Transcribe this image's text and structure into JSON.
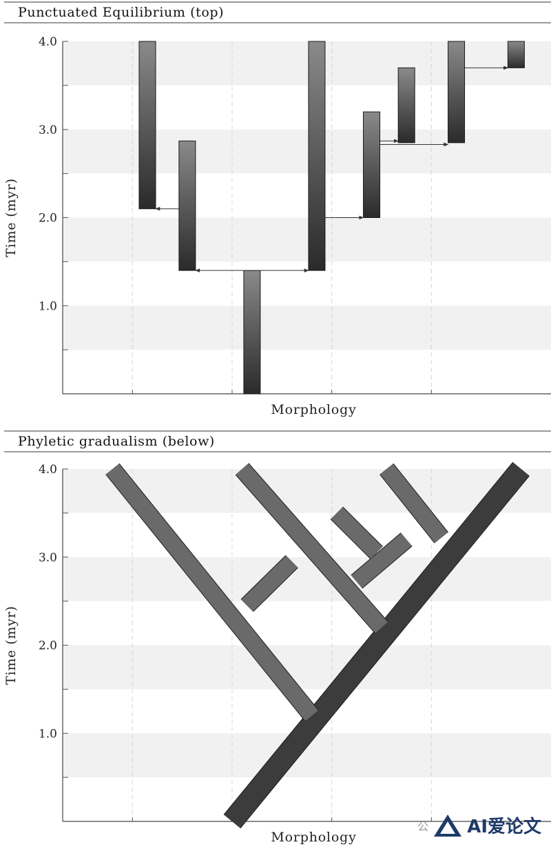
{
  "panels": [
    {
      "id": "top",
      "title": "Punctuated Equilibrium (top)",
      "type": "punctuated",
      "ylabel": "Time (myr)",
      "xlabel": "Morphology",
      "y_ticks": [
        "1.0",
        "2.0",
        "3.0",
        "4.0"
      ],
      "ylim": [
        0,
        4.0
      ],
      "lineages": [
        {
          "x": 1.15,
          "start": 2.1,
          "end": 4.0
        },
        {
          "x": 1.55,
          "start": 1.4,
          "end": 2.87
        },
        {
          "x": 2.2,
          "start": 0.0,
          "end": 1.4
        },
        {
          "x": 2.85,
          "start": 1.4,
          "end": 4.0
        },
        {
          "x": 3.4,
          "start": 2.0,
          "end": 3.2
        },
        {
          "x": 3.75,
          "start": 2.85,
          "end": 3.7
        },
        {
          "x": 4.25,
          "start": 2.85,
          "end": 4.0
        },
        {
          "x": 4.85,
          "start": 3.7,
          "end": 4.0
        }
      ],
      "events": [
        {
          "from_x": 1.55,
          "to_x": 1.15,
          "t": 2.1
        },
        {
          "from_x": 2.2,
          "to_x": 1.55,
          "t": 1.4
        },
        {
          "from_x": 2.2,
          "to_x": 2.85,
          "t": 1.4
        },
        {
          "from_x": 2.85,
          "to_x": 3.4,
          "t": 2.0
        },
        {
          "from_x": 3.4,
          "to_x": 3.75,
          "t": 2.87
        },
        {
          "from_x": 3.4,
          "to_x": 4.25,
          "t": 2.83
        },
        {
          "from_x": 4.25,
          "to_x": 4.85,
          "t": 3.7
        }
      ]
    },
    {
      "id": "bottom",
      "title": "Phyletic gradualism (below)",
      "type": "gradualism",
      "ylabel": "Time (myr)",
      "xlabel": "Morphology",
      "y_ticks": [
        "1.0",
        "2.0",
        "3.0",
        "4.0"
      ],
      "ylim": [
        0,
        4.0
      ],
      "branches": [
        {
          "x0": 2.0,
          "t0": 0.0,
          "x1": 4.9,
          "t1": 4.0
        },
        {
          "x0": 2.8,
          "t0": 1.2,
          "x1": 0.8,
          "t1": 4.0
        },
        {
          "x0": 2.15,
          "t0": 2.45,
          "x1": 2.6,
          "t1": 2.95
        },
        {
          "x0": 3.5,
          "t0": 2.2,
          "x1": 2.1,
          "t1": 4.0
        },
        {
          "x0": 3.25,
          "t0": 2.72,
          "x1": 3.75,
          "t1": 3.2
        },
        {
          "x0": 3.45,
          "t0": 3.05,
          "x1": 3.05,
          "t1": 3.5
        },
        {
          "x0": 4.1,
          "t0": 3.22,
          "x1": 3.55,
          "t1": 4.0
        }
      ]
    }
  ],
  "watermark": {
    "gong": "公",
    "text": "AI爱论文"
  }
}
